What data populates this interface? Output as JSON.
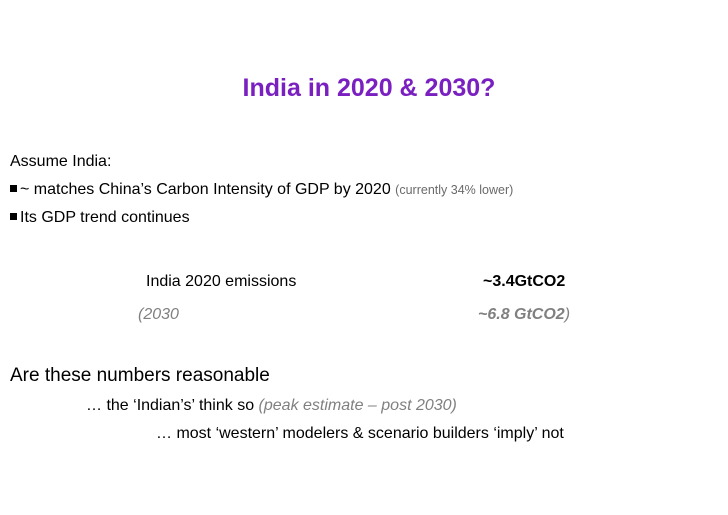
{
  "title": "India in 2020 & 2030?",
  "assume_heading": "Assume India:",
  "bullets": [
    {
      "text": "~ matches China’s Carbon Intensity of GDP by 2020 ",
      "note": "(currently 34% lower)"
    },
    {
      "text": "Its GDP trend continues"
    }
  ],
  "emissions": {
    "row2020_label": "India 2020 emissions",
    "row2020_value": "~3.4GtCO2",
    "row2030_label": "(2030",
    "row2030_value": "~6.8 GtCO2",
    "row2030_close": ")"
  },
  "question": "Are these numbers reasonable",
  "line1_prefix": "… the ‘Indian’s’ think so ",
  "line1_note": "(peak estimate – post 2030)",
  "line2": "… most ‘western’ modelers & scenario builders ‘imply’ not",
  "colors": {
    "title": "#7a1fc0",
    "muted": "#808080"
  }
}
